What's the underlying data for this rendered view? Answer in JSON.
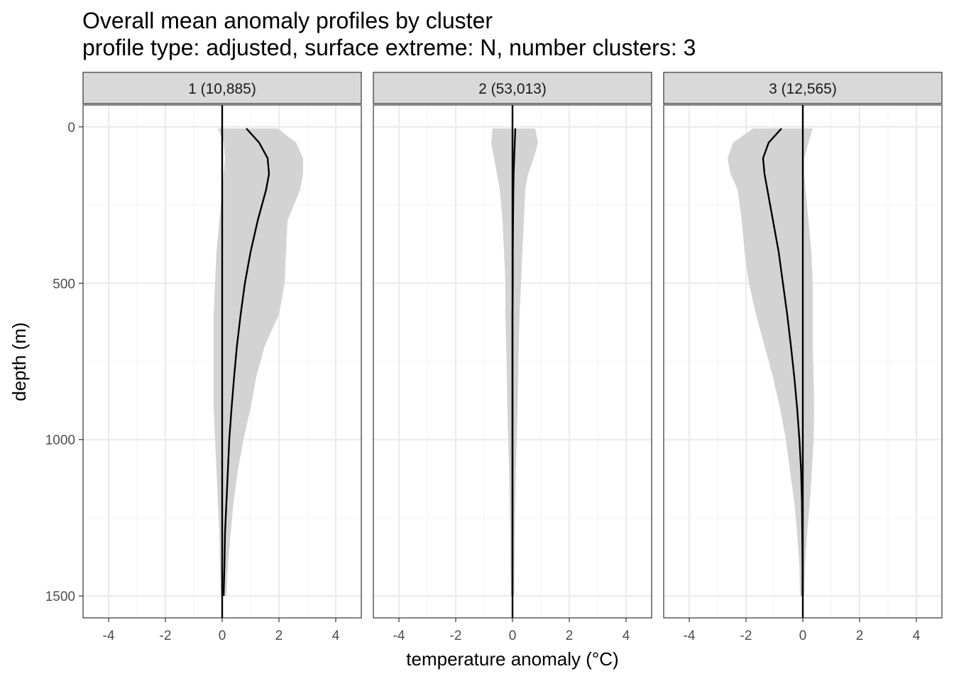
{
  "chart_data": {
    "type": "area",
    "title": "Overall mean anomaly profiles by cluster",
    "subtitle": "profile type: adjusted, surface extreme: N, number clusters: 3",
    "xlabel": "temperature anomaly (°C)",
    "ylabel": "depth (m)",
    "xlim": [
      -4.9,
      4.9
    ],
    "ylim": [
      1570,
      -70
    ],
    "x_ticks": [
      -4,
      -2,
      0,
      2,
      4
    ],
    "x_tick_labels": [
      "-4",
      "-2",
      "0",
      "2",
      "4"
    ],
    "y_ticks": [
      0,
      500,
      1000,
      1500
    ],
    "y_tick_labels": [
      "0",
      "500",
      "1000",
      "1500"
    ],
    "grid": true,
    "reference_line_x": 0,
    "panels": [
      {
        "label": "1 (10,885)",
        "depth": [
          5,
          50,
          100,
          150,
          200,
          300,
          400,
          500,
          600,
          700,
          800,
          900,
          1000,
          1100,
          1200,
          1300,
          1400,
          1500
        ],
        "mean": [
          0.85,
          1.3,
          1.6,
          1.65,
          1.55,
          1.25,
          1.0,
          0.8,
          0.65,
          0.52,
          0.42,
          0.33,
          0.25,
          0.2,
          0.15,
          0.1,
          0.08,
          0.05
        ],
        "lower": [
          -0.15,
          0.05,
          0.1,
          0.05,
          0.0,
          -0.1,
          -0.2,
          -0.25,
          -0.3,
          -0.3,
          -0.3,
          -0.3,
          -0.25,
          -0.2,
          -0.15,
          -0.1,
          -0.08,
          -0.05
        ],
        "upper": [
          1.95,
          2.6,
          2.85,
          2.85,
          2.75,
          2.3,
          2.25,
          2.2,
          2.0,
          1.5,
          1.2,
          1.0,
          0.75,
          0.55,
          0.4,
          0.3,
          0.2,
          0.15
        ]
      },
      {
        "label": "2 (53,013)",
        "depth": [
          5,
          50,
          100,
          150,
          200,
          300,
          400,
          500,
          600,
          700,
          800,
          900,
          1000,
          1100,
          1200,
          1300,
          1400,
          1500
        ],
        "mean": [
          0.1,
          0.08,
          0.06,
          0.04,
          0.03,
          0.02,
          0.01,
          0.01,
          0.0,
          0.0,
          0.0,
          0.0,
          0.0,
          0.0,
          0.0,
          0.0,
          0.0,
          0.0
        ],
        "lower": [
          -0.7,
          -0.75,
          -0.65,
          -0.55,
          -0.45,
          -0.35,
          -0.3,
          -0.25,
          -0.25,
          -0.22,
          -0.2,
          -0.18,
          -0.15,
          -0.12,
          -0.1,
          -0.08,
          -0.07,
          -0.06
        ],
        "upper": [
          0.8,
          0.9,
          0.75,
          0.55,
          0.45,
          0.4,
          0.35,
          0.3,
          0.25,
          0.22,
          0.2,
          0.18,
          0.15,
          0.12,
          0.1,
          0.08,
          0.07,
          0.06
        ]
      },
      {
        "label": "3 (12,565)",
        "depth": [
          5,
          50,
          100,
          150,
          200,
          300,
          400,
          500,
          600,
          700,
          800,
          900,
          1000,
          1100,
          1200,
          1300,
          1400,
          1500
        ],
        "mean": [
          -0.75,
          -1.2,
          -1.4,
          -1.35,
          -1.25,
          -1.05,
          -0.85,
          -0.7,
          -0.55,
          -0.42,
          -0.3,
          -0.2,
          -0.12,
          -0.06,
          -0.03,
          -0.02,
          -0.01,
          -0.01
        ],
        "lower": [
          -1.75,
          -2.45,
          -2.65,
          -2.55,
          -2.3,
          -2.15,
          -2.05,
          -1.9,
          -1.65,
          -1.35,
          -1.05,
          -0.8,
          -0.6,
          -0.45,
          -0.3,
          -0.2,
          -0.12,
          -0.1
        ],
        "upper": [
          0.35,
          0.2,
          0.05,
          0.05,
          0.1,
          0.2,
          0.3,
          0.35,
          0.35,
          0.35,
          0.38,
          0.4,
          0.38,
          0.32,
          0.25,
          0.15,
          0.08,
          0.05
        ]
      }
    ],
    "colors": {
      "ribbon": "#d3d3d3",
      "line": "#000000",
      "strip_fill": "#d9d9d9",
      "grid_major": "#ebebeb",
      "grid_minor": "#f5f5f5",
      "panel_border": "#333333"
    }
  }
}
